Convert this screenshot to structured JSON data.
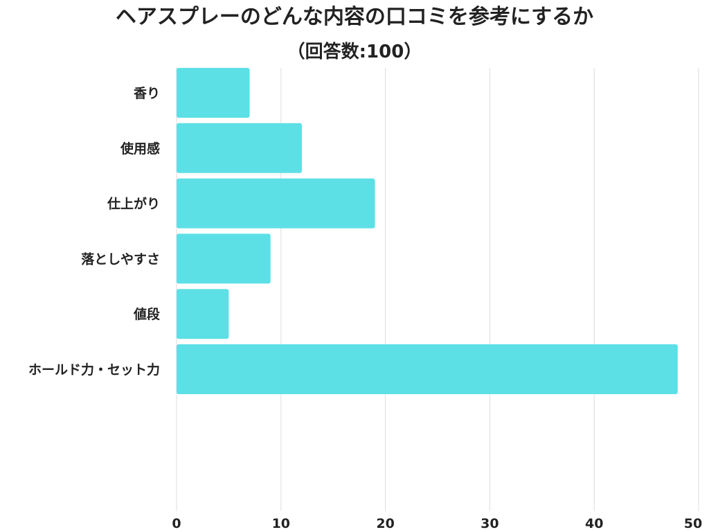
{
  "chart_data": {
    "type": "bar",
    "orientation": "horizontal",
    "title": "ヘアスプレーのどんな内容の口コミを参考にするか",
    "subtitle": "（回答数:100）",
    "categories": [
      "香り",
      "使用感",
      "仕上がり",
      "落としやすさ",
      "値段",
      "ホールド力・セット力"
    ],
    "values": [
      7,
      12,
      19,
      9,
      5,
      48
    ],
    "xlim": [
      0,
      50
    ],
    "ticks": [
      0,
      10,
      20,
      30,
      40,
      50
    ],
    "xlabel": "",
    "ylabel": "",
    "grid": true,
    "legend": "none",
    "colors": {
      "bar": "#5ce0e6",
      "grid": "#dddddd",
      "text": "#222222"
    }
  }
}
